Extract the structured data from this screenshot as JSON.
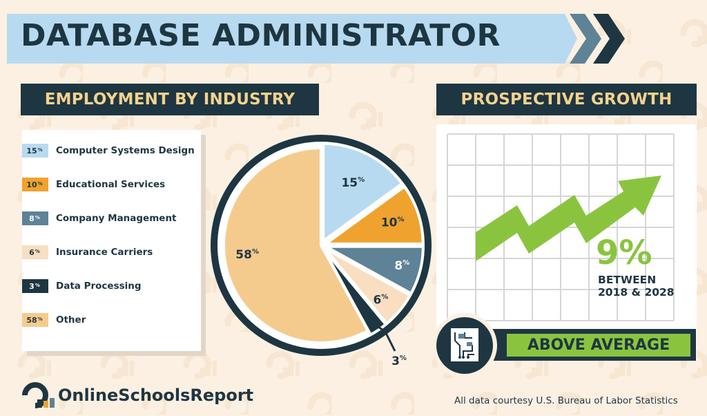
{
  "title": "DATABASE ADMINISTRATOR",
  "sections": {
    "employment_title": "EMPLOYMENT BY INDUSTRY",
    "growth_title": "PROSPECTIVE GROWTH"
  },
  "colors": {
    "navy": "#1E3642",
    "light_blue": "#B8DAF0",
    "orange": "#F0A22E",
    "slate": "#5E8296",
    "cream": "#F9DEC1",
    "tan": "#F5CB8D",
    "green": "#8AC43F",
    "background": "#FCF0E2"
  },
  "chart_data": {
    "type": "pie",
    "title": "EMPLOYMENT BY INDUSTRY",
    "series": [
      {
        "label": "Computer Systems Design",
        "value": 15,
        "display": "15",
        "unit": "%",
        "color": "#B8DAF0",
        "text_color": "#1E3642"
      },
      {
        "label": "Educational Services",
        "value": 10,
        "display": "10",
        "unit": "%",
        "color": "#F0A22E",
        "text_color": "#1E3642"
      },
      {
        "label": "Company Management",
        "value": 8,
        "display": "8",
        "unit": "%",
        "color": "#5E8296",
        "text_color": "#FFFFFF"
      },
      {
        "label": "Insurance Carriers",
        "value": 6,
        "display": "6",
        "unit": "%",
        "color": "#F9DEC1",
        "text_color": "#1E3642"
      },
      {
        "label": "Data Processing",
        "value": 3,
        "display": "3",
        "unit": "%",
        "color": "#1E3642",
        "text_color": "#FFFFFF"
      },
      {
        "label": "Other",
        "value": 58,
        "display": "58",
        "unit": "%",
        "color": "#F5CB8D",
        "text_color": "#1E3642"
      }
    ]
  },
  "growth": {
    "percent": "9%",
    "line1": "BETWEEN",
    "line2": "2018 & 2028",
    "rating": "ABOVE AVERAGE"
  },
  "footer": {
    "logo_text": "OnlineSchoolsReport",
    "credit": "All data courtesy U.S. Bureau of Labor Statistics"
  }
}
